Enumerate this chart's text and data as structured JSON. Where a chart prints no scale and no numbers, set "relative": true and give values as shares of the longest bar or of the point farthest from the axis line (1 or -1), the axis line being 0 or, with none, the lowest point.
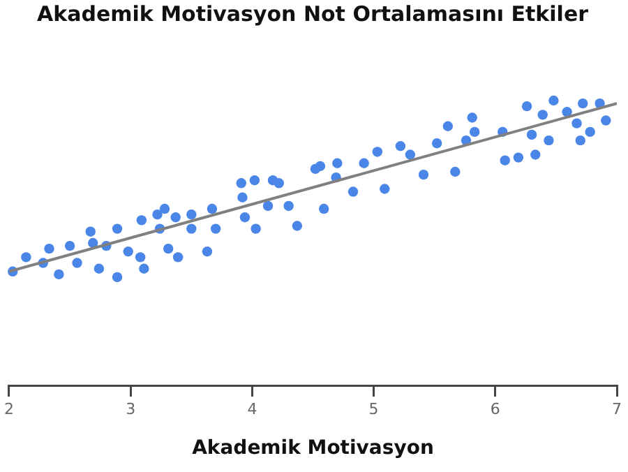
{
  "chart_data": {
    "type": "scatter",
    "title": "Akademik Motivasyon Not Ortalamasını Etkiler",
    "xlabel": "Akademik Motivasyon",
    "relative": true,
    "xlim": [
      2,
      7
    ],
    "xticks": [
      2,
      3,
      4,
      5,
      6,
      7
    ],
    "grid": false,
    "legend": false,
    "series": [
      {
        "color": "#4a86e8",
        "marker": "circle",
        "x": [
          2.03,
          2.14,
          2.28,
          2.33,
          2.41,
          2.5,
          2.56,
          2.67,
          2.69,
          2.74,
          2.8,
          2.89,
          2.89,
          2.98,
          3.08,
          3.09,
          3.11,
          3.22,
          3.24,
          3.28,
          3.31,
          3.37,
          3.39,
          3.5,
          3.5,
          3.63,
          3.67,
          3.7,
          3.91,
          3.92,
          3.94,
          4.02,
          4.03,
          4.13,
          4.17,
          4.22,
          4.3,
          4.37,
          4.52,
          4.56,
          4.59,
          4.69,
          4.7,
          4.83,
          4.92,
          5.03,
          5.09,
          5.22,
          5.3,
          5.41,
          5.52,
          5.61,
          5.67,
          5.76,
          5.81,
          5.83,
          6.06,
          6.08,
          6.19,
          6.26,
          6.3,
          6.33,
          6.39,
          6.44,
          6.48,
          6.59,
          6.67,
          6.7,
          6.72,
          6.78,
          6.86,
          6.91
        ],
        "values": [
          0.4,
          0.45,
          0.43,
          0.48,
          0.39,
          0.49,
          0.43,
          0.54,
          0.5,
          0.41,
          0.49,
          0.55,
          0.38,
          0.47,
          0.45,
          0.58,
          0.41,
          0.6,
          0.55,
          0.62,
          0.48,
          0.59,
          0.45,
          0.6,
          0.55,
          0.47,
          0.62,
          0.55,
          0.71,
          0.66,
          0.59,
          0.72,
          0.55,
          0.63,
          0.72,
          0.71,
          0.63,
          0.56,
          0.76,
          0.77,
          0.62,
          0.73,
          0.78,
          0.68,
          0.78,
          0.82,
          0.69,
          0.84,
          0.81,
          0.74,
          0.85,
          0.91,
          0.75,
          0.86,
          0.94,
          0.89,
          0.89,
          0.79,
          0.8,
          0.98,
          0.88,
          0.81,
          0.95,
          0.86,
          1,
          0.96,
          0.92,
          0.86,
          0.99,
          0.89,
          0.99,
          0.93
        ]
      },
      {
        "type": "line",
        "color": "#808080",
        "marker": "none",
        "x": [
          2,
          7
        ],
        "values": [
          0.4,
          0.99
        ]
      }
    ]
  }
}
